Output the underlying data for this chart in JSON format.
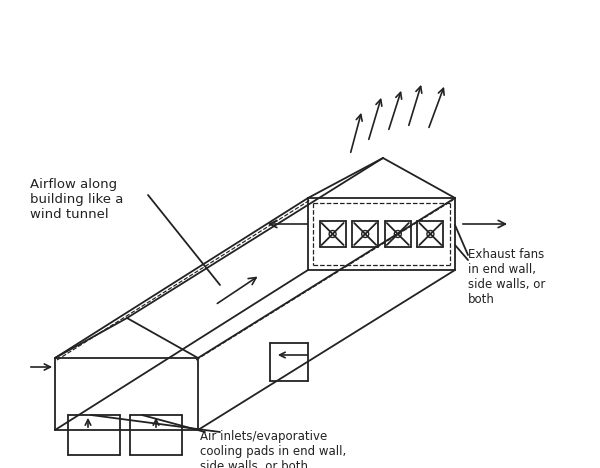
{
  "bg_color": "#ffffff",
  "line_color": "#222222",
  "label_airflow": "Airflow along\nbuilding like a\nwind tunnel",
  "label_exhaust": "Exhaust fans\nin end wall,\nside walls, or\nboth",
  "label_inlets": "Air inlets/evaporative\ncooling pads in end wall,\nside walls, or both",
  "fig_width": 6.0,
  "fig_height": 4.68
}
